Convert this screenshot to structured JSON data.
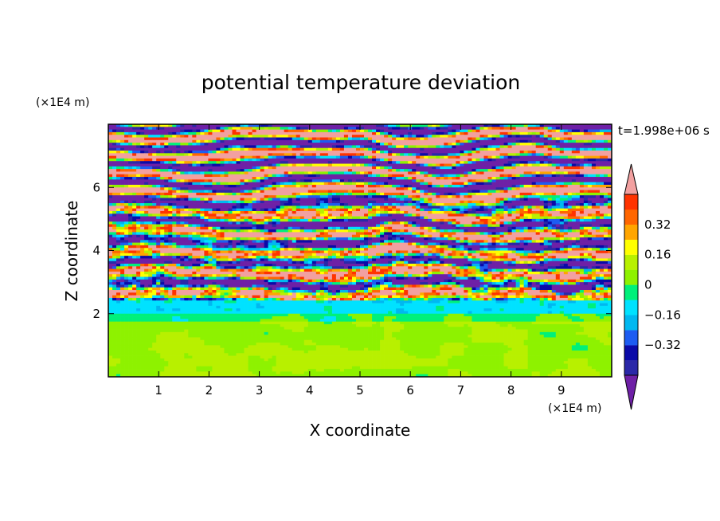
{
  "chart_data": {
    "type": "heatmap",
    "title": "potential temperature deviation",
    "xlabel": "X coordinate",
    "ylabel": "Z coordinate",
    "x_unit": "(×1E4 m)",
    "y_unit": "(×1E4 m)",
    "time_label": "t=1.998e+06 s",
    "xlim": [
      0,
      10
    ],
    "ylim": [
      0,
      8
    ],
    "x_ticks": [
      1,
      2,
      3,
      4,
      5,
      6,
      7,
      8,
      9
    ],
    "y_ticks": [
      2,
      4,
      6
    ],
    "x_tick_labels": [
      "1",
      "2",
      "3",
      "4",
      "5",
      "6",
      "7",
      "8",
      "9"
    ],
    "y_tick_labels": [
      "2",
      "4",
      "6"
    ],
    "colorbar": {
      "levels": [
        -0.48,
        -0.4,
        -0.32,
        -0.24,
        -0.16,
        -0.08,
        0,
        0.08,
        0.16,
        0.24,
        0.32,
        0.4,
        0.48
      ],
      "labeled_levels": [
        "0.32",
        "0.16",
        "0",
        "−0.16",
        "−0.32"
      ],
      "labeled_values": [
        0.32,
        0.16,
        0,
        -0.16,
        -0.32
      ],
      "colors": [
        "#6e20a6",
        "#2a28a8",
        "#0a0aa8",
        "#1d5cf2",
        "#00b8f0",
        "#00e2ff",
        "#00f07a",
        "#8ef200",
        "#b8f000",
        "#ffff00",
        "#ffa500",
        "#ff6600",
        "#ff3300",
        "#f2a0a0"
      ],
      "extend": "both"
    },
    "approximate_profile": [
      {
        "z_range": [
          0,
          2
        ],
        "pattern": "green (0 to +0.08) with light-green patches (+0.08 to +0.16)"
      },
      {
        "z_range": [
          2,
          2.4
        ],
        "pattern": "cyan/green mixing layer"
      },
      {
        "z_range": [
          2.4,
          5.5
        ],
        "pattern": "turbulent alternating blue/purple, pink/red, yellow, cyan filaments"
      },
      {
        "z_range": [
          5.5,
          8
        ],
        "pattern": "horizontal alternating bands of purple (<-0.48) and pink (>0.48)"
      }
    ],
    "grid": false
  },
  "colors": {
    "background": "#ffffff",
    "axis": "#000000"
  }
}
